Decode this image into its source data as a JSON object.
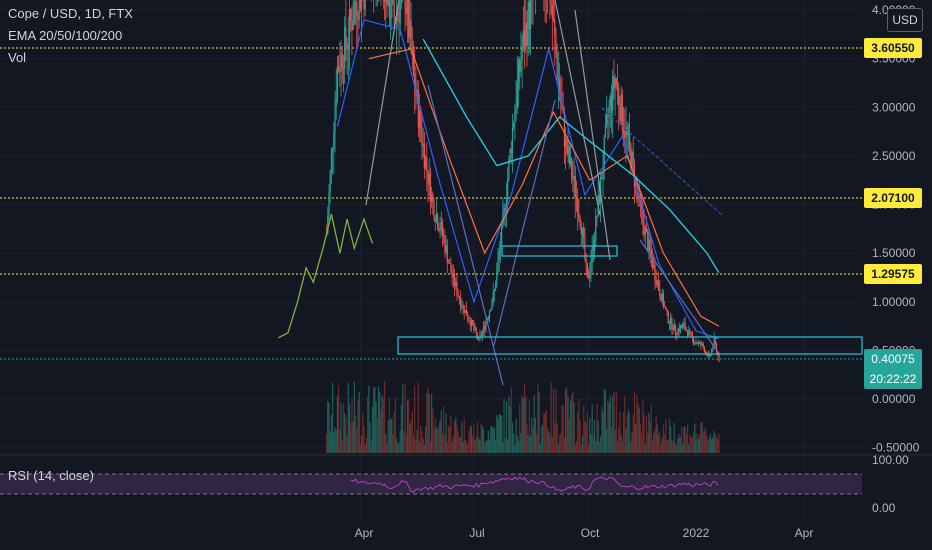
{
  "header": {
    "symbol_line": "Cope / USD, 1D, FTX",
    "ema_line": "EMA 20/50/100/200",
    "vol_line": "Vol"
  },
  "rsi": {
    "label": "RSI (14, close)"
  },
  "currency_badge": "USD",
  "price_tags": {
    "level_1": "3.60550",
    "level_2": "2.07100",
    "level_3": "1.29575",
    "last_price": "0.40075",
    "countdown": "20:22:22"
  },
  "colors": {
    "background": "#131722",
    "up": "#26a69a",
    "down": "#ef5350",
    "tag_yellow": "#ffeb3b",
    "rsi_line": "#ba3ac5",
    "rsi_band": "#3a2a4a",
    "forecast": "#7cb342",
    "box": "#26c6da"
  },
  "chart_data": {
    "type": "line",
    "symbol": "Cope / USD",
    "interval": "1D",
    "exchange": "FTX",
    "price_axis": {
      "ticks": [
        "-0.50000",
        "0.00000",
        "0.50000",
        "1.00000",
        "1.50000",
        "2.00000",
        "2.50000",
        "3.00000",
        "3.50000",
        "4.00000"
      ],
      "ylim": [
        -0.5,
        4.0
      ]
    },
    "time_axis": {
      "ticks": [
        "Apr",
        "Jul",
        "Oct",
        "2022",
        "Apr"
      ]
    },
    "horizontal_levels": [
      3.6055,
      2.071,
      1.29575,
      0.40075
    ],
    "series": [
      {
        "name": "Price",
        "points": [
          [
            "Mar 1",
            1.7
          ],
          [
            "Mar 5",
            2.5
          ],
          [
            "Mar 10",
            3.4
          ],
          [
            "Mar 18",
            3.7
          ],
          [
            "Mar 25",
            4.1
          ],
          [
            "Apr 5",
            4.3
          ],
          [
            "Apr 15",
            4.5
          ],
          [
            "Apr 25",
            3.9
          ],
          [
            "May 5",
            4.2
          ],
          [
            "May 12",
            3.3
          ],
          [
            "May 20",
            2.6
          ],
          [
            "May 28",
            2.0
          ],
          [
            "Jun 5",
            1.7
          ],
          [
            "Jun 12",
            1.3
          ],
          [
            "Jun 20",
            1.0
          ],
          [
            "Jun 28",
            0.8
          ],
          [
            "Jul 5",
            0.6
          ],
          [
            "Jul 10",
            0.75
          ],
          [
            "Jul 18",
            1.1
          ],
          [
            "Jul 26",
            1.9
          ],
          [
            "Aug 3",
            2.9
          ],
          [
            "Aug 10",
            3.6
          ],
          [
            "Aug 18",
            4.1
          ],
          [
            "Aug 25",
            4.4
          ],
          [
            "Sep 2",
            4.2
          ],
          [
            "Sep 8",
            3.4
          ],
          [
            "Sep 15",
            2.6
          ],
          [
            "Sep 22",
            2.2
          ],
          [
            "Sep 28",
            1.8
          ],
          [
            "Oct 3",
            1.2
          ],
          [
            "Oct 8",
            1.6
          ],
          [
            "Oct 14",
            2.2
          ],
          [
            "Oct 20",
            2.9
          ],
          [
            "Oct 26",
            3.3
          ],
          [
            "Nov 1",
            2.9
          ],
          [
            "Nov 8",
            2.5
          ],
          [
            "Nov 15",
            2.0
          ],
          [
            "Nov 22",
            1.6
          ],
          [
            "Nov 30",
            1.2
          ],
          [
            "Dec 8",
            0.85
          ],
          [
            "Dec 15",
            0.7
          ],
          [
            "Dec 22",
            0.75
          ],
          [
            "Dec 30",
            0.6
          ],
          [
            "Jan 6",
            0.55
          ],
          [
            "Jan 12",
            0.42
          ],
          [
            "Jan 16",
            0.6
          ],
          [
            "Jan 20",
            0.4
          ]
        ]
      },
      {
        "name": "EMA 20",
        "points": [
          [
            "Mar 10",
            2.8
          ],
          [
            "Apr 1",
            3.9
          ],
          [
            "May 1",
            3.8
          ],
          [
            "Jun 1",
            2.3
          ],
          [
            "Jul 1",
            1.0
          ],
          [
            "Aug 1",
            2.1
          ],
          [
            "Sep 1",
            3.6
          ],
          [
            "Oct 1",
            2.1
          ],
          [
            "Nov 1",
            2.7
          ],
          [
            "Dec 1",
            1.4
          ],
          [
            "Jan 1",
            0.7
          ],
          [
            "Jan 20",
            0.62
          ]
        ]
      },
      {
        "name": "EMA 50",
        "points": [
          [
            "Apr 5",
            3.5
          ],
          [
            "May 10",
            3.6
          ],
          [
            "Jun 10",
            2.5
          ],
          [
            "Jul 10",
            1.5
          ],
          [
            "Aug 10",
            2.2
          ],
          [
            "Sep 5",
            2.95
          ],
          [
            "Oct 5",
            2.25
          ],
          [
            "Nov 5",
            2.5
          ],
          [
            "Dec 5",
            1.5
          ],
          [
            "Jan 5",
            0.85
          ],
          [
            "Jan 20",
            0.75
          ]
        ]
      },
      {
        "name": "EMA 100",
        "points": [
          [
            "May 20",
            3.7
          ],
          [
            "Jun 25",
            2.9
          ],
          [
            "Jul 20",
            2.4
          ],
          [
            "Aug 15",
            2.5
          ],
          [
            "Sep 10",
            2.9
          ],
          [
            "Oct 10",
            2.6
          ],
          [
            "Nov 10",
            2.3
          ],
          [
            "Dec 10",
            1.95
          ],
          [
            "Jan 10",
            1.5
          ],
          [
            "Jan 20",
            1.3
          ]
        ]
      }
    ],
    "forecast": {
      "name": "",
      "points": [
        [
          "Jan 20",
          0.63
        ],
        [
          "Jan 28",
          0.68
        ],
        [
          "Feb 5",
          1.0
        ],
        [
          "Feb 12",
          1.35
        ],
        [
          "Feb 18",
          1.2
        ],
        [
          "Feb 26",
          1.55
        ],
        [
          "Mar 5",
          1.9
        ],
        [
          "Mar 12",
          1.5
        ],
        [
          "Mar 18",
          1.85
        ],
        [
          "Mar 24",
          1.55
        ],
        [
          "Apr 1",
          1.85
        ],
        [
          "Apr 8",
          1.6
        ]
      ]
    },
    "rsi_axis": {
      "ticks": [
        "100.00",
        "0.00"
      ]
    }
  }
}
